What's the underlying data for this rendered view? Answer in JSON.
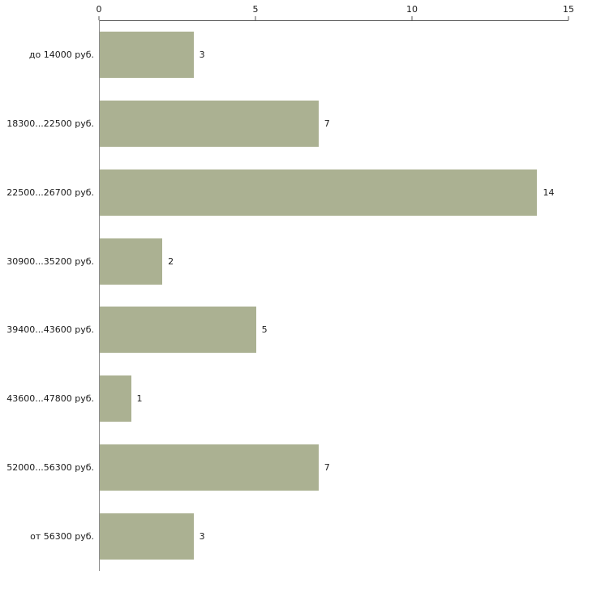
{
  "chart_data": {
    "type": "bar",
    "orientation": "horizontal",
    "title": "",
    "xlabel": "",
    "ylabel": "",
    "categories": [
      "до 14000 руб.",
      "18300...22500 руб.",
      "22500...26700 руб.",
      "30900...35200 руб.",
      "39400...43600 руб.",
      "43600...47800 руб.",
      "52000...56300 руб.",
      "от 56300 руб."
    ],
    "values": [
      3,
      7,
      14,
      2,
      5,
      1,
      7,
      3
    ],
    "xlim": [
      0,
      15
    ],
    "x_ticks": [
      0,
      5,
      10,
      15
    ],
    "axis_position": "top",
    "grid": false,
    "legend": false,
    "bar_color": "#abb192",
    "axis_line_color": "#555555",
    "background_color": "#ffffff"
  }
}
